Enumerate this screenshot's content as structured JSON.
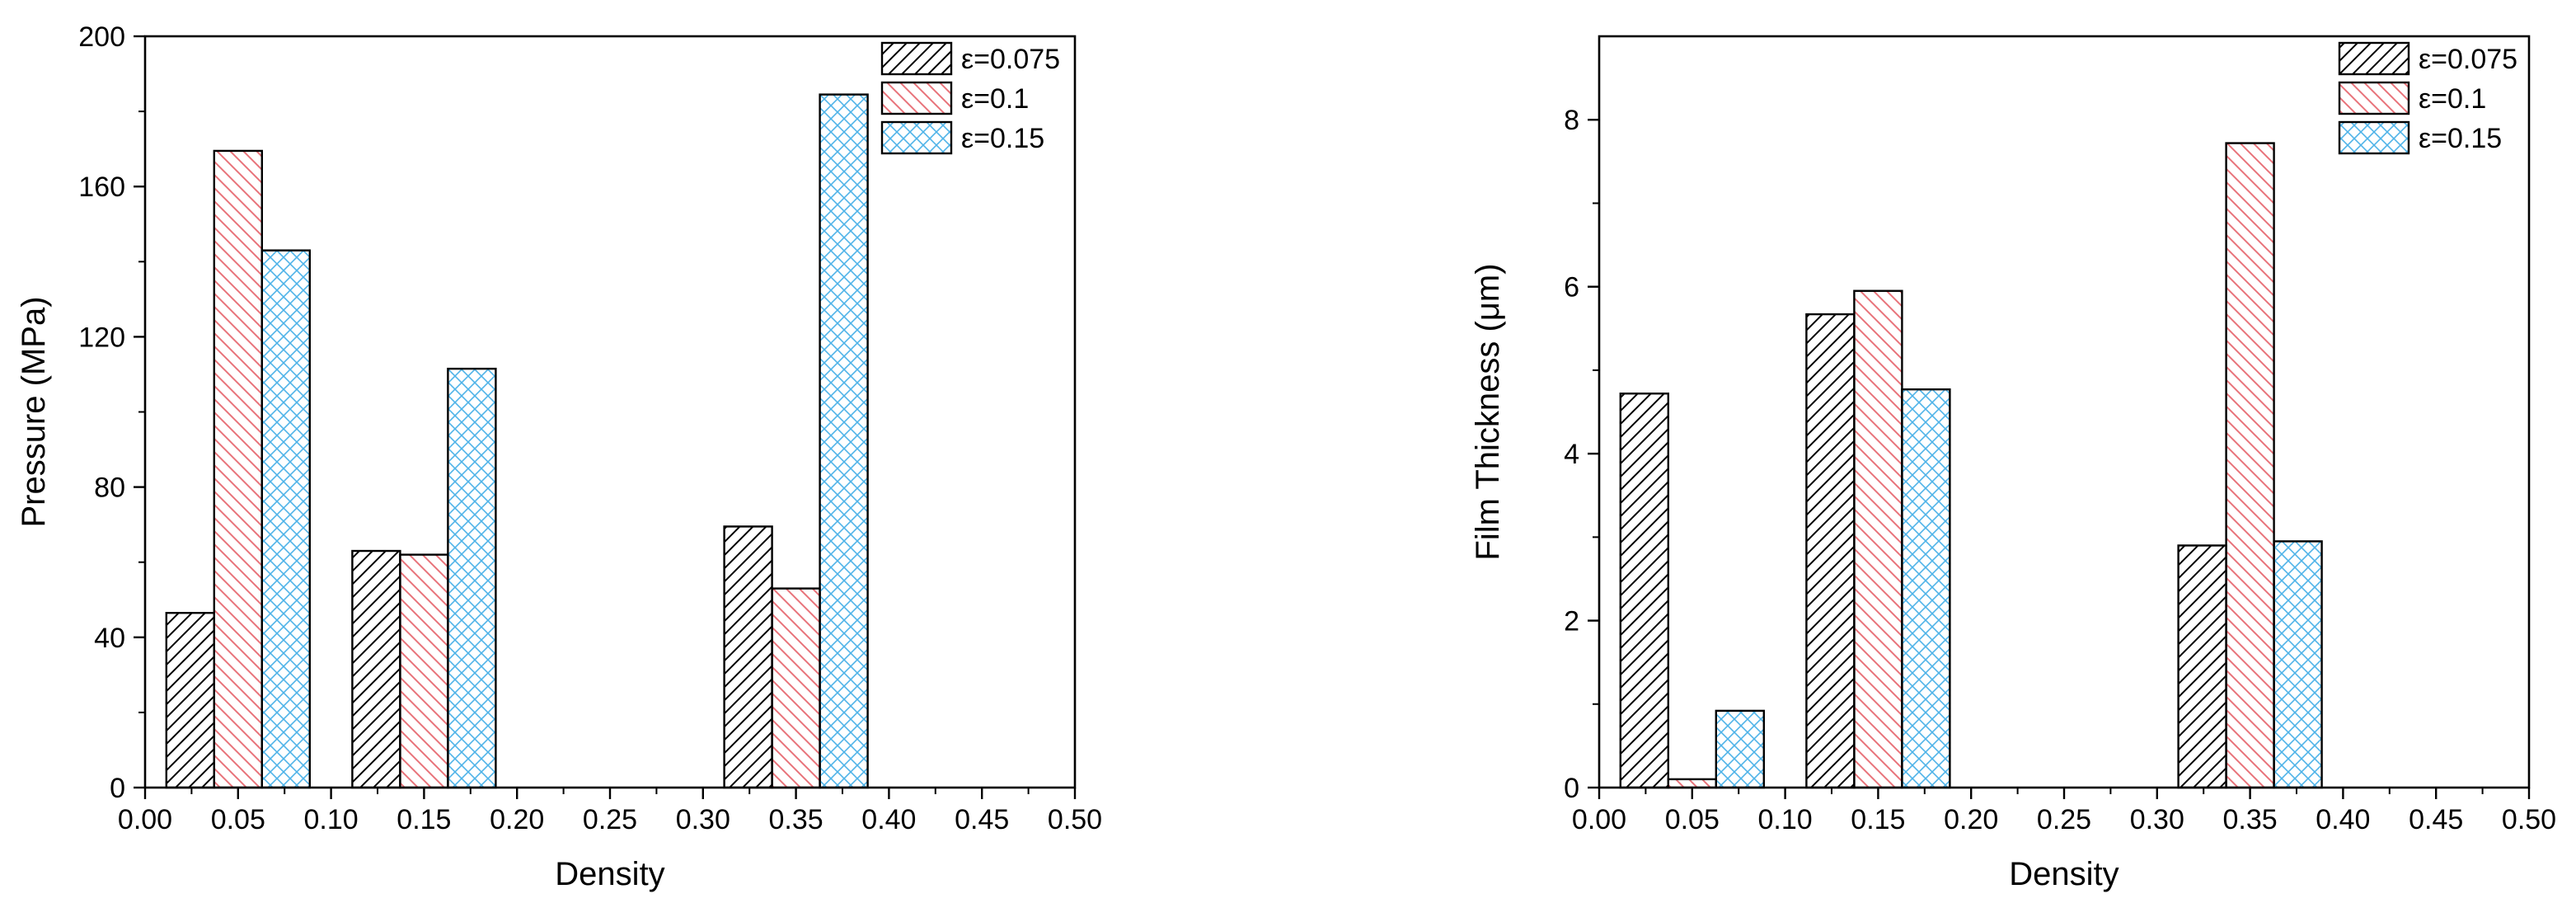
{
  "chart_data": [
    {
      "type": "bar",
      "title": "",
      "xlabel": "Density",
      "ylabel": "Pressure (MPa)",
      "xlim": [
        0,
        0.5
      ],
      "ylim": [
        0,
        200
      ],
      "xticks": [
        "0.00",
        "0.05",
        "0.10",
        "0.15",
        "0.20",
        "0.25",
        "0.30",
        "0.35",
        "0.40",
        "0.45",
        "0.50"
      ],
      "yticks": [
        "0",
        "40",
        "80",
        "120",
        "160",
        "200"
      ],
      "legend_position": "top-right",
      "grid": false,
      "categories": [
        0.05,
        0.15,
        0.35
      ],
      "series": [
        {
          "name": "ε=0.075",
          "values": [
            46.5,
            63,
            69.5
          ],
          "color": "#000000",
          "pattern": "diagonal-up"
        },
        {
          "name": "ε=0.1",
          "values": [
            169.5,
            62,
            53
          ],
          "color": "#e8737a",
          "pattern": "diagonal-down"
        },
        {
          "name": "ε=0.15",
          "values": [
            143,
            111.5,
            184.5
          ],
          "color": "#4fb3e8",
          "pattern": "crosshatch"
        }
      ]
    },
    {
      "type": "bar",
      "title": "",
      "xlabel": "Density",
      "ylabel": "Film Thickness (μm)",
      "xlim": [
        0,
        0.5
      ],
      "ylim": [
        0,
        9
      ],
      "xticks": [
        "0.00",
        "0.05",
        "0.10",
        "0.15",
        "0.20",
        "0.25",
        "0.30",
        "0.35",
        "0.40",
        "0.45",
        "0.50"
      ],
      "yticks": [
        "0",
        "2",
        "4",
        "6",
        "8"
      ],
      "legend_position": "top-right",
      "grid": false,
      "categories": [
        0.05,
        0.15,
        0.35
      ],
      "series": [
        {
          "name": "ε=0.075",
          "values": [
            4.72,
            5.67,
            2.9
          ],
          "color": "#000000",
          "pattern": "diagonal-up"
        },
        {
          "name": "ε=0.1",
          "values": [
            0.1,
            5.95,
            7.72
          ],
          "color": "#e8737a",
          "pattern": "diagonal-down"
        },
        {
          "name": "ε=0.15",
          "values": [
            0.92,
            4.77,
            2.95
          ],
          "color": "#4fb3e8",
          "pattern": "crosshatch"
        }
      ]
    }
  ]
}
